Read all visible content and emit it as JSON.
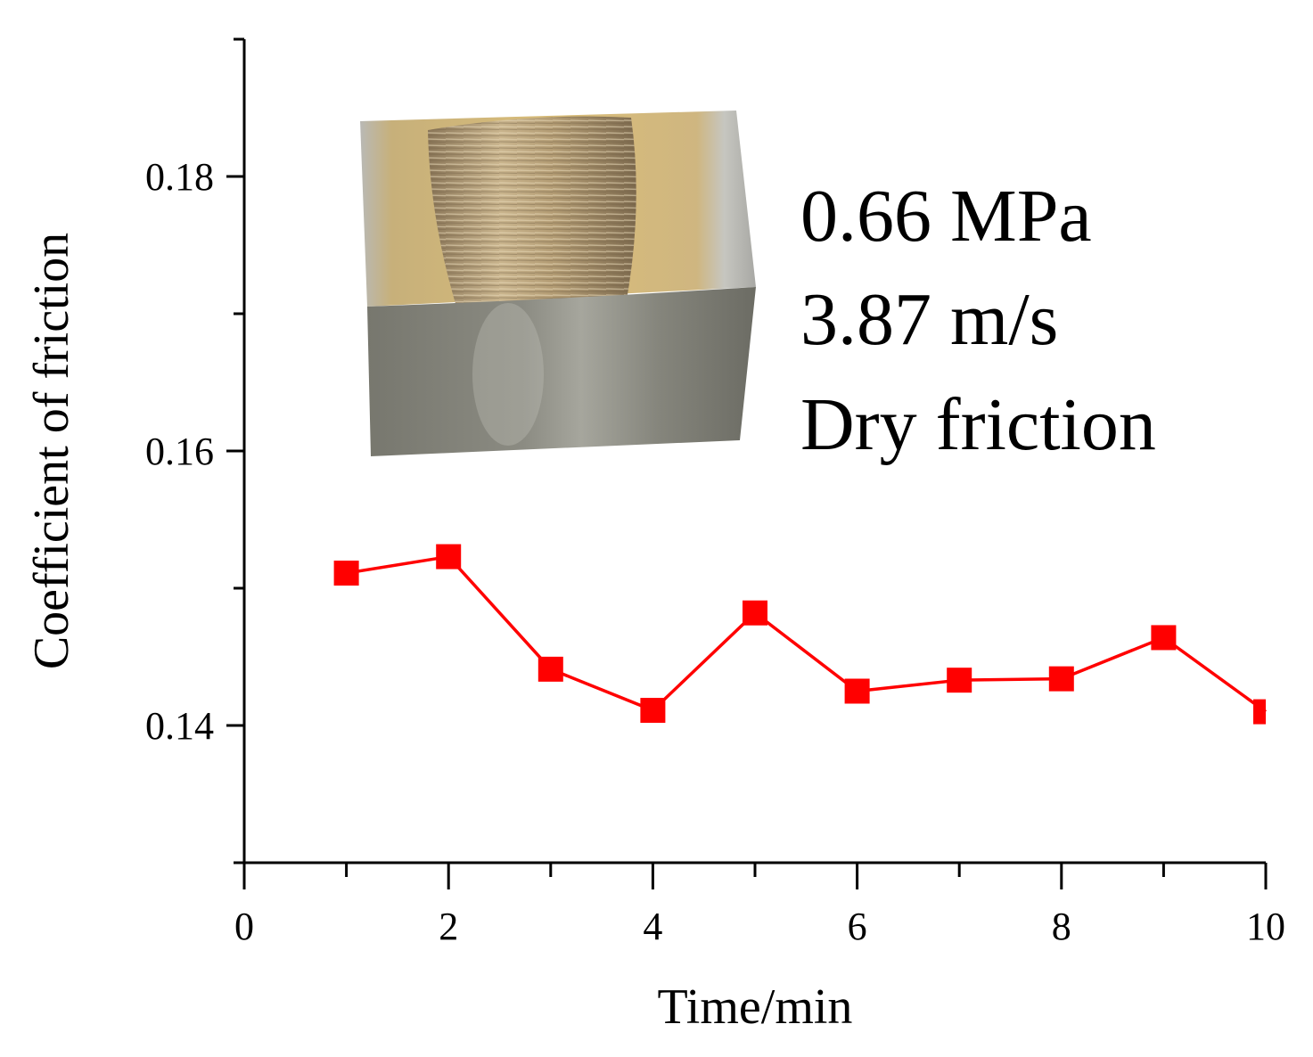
{
  "chart_data": {
    "type": "line",
    "title": "",
    "xlabel": "Time/min",
    "ylabel": "Coefficient of friction",
    "xlim": [
      0,
      10
    ],
    "ylim": [
      0.13,
      0.19
    ],
    "x_ticks": [
      0,
      2,
      4,
      6,
      8,
      10
    ],
    "x_tick_labels": [
      "0",
      "2",
      "4",
      "6",
      "8",
      "10"
    ],
    "y_ticks": [
      0.14,
      0.16,
      0.18
    ],
    "y_tick_labels": [
      "0.14",
      "0.16",
      "0.18"
    ],
    "grid": false,
    "legend": "none",
    "series": [
      {
        "color": "#ff0000",
        "marker": "square",
        "x": [
          1,
          2,
          3,
          4,
          5,
          6,
          7,
          8,
          9,
          10
        ],
        "y": [
          0.1511,
          0.1523,
          0.1441,
          0.1411,
          0.1482,
          0.1425,
          0.1433,
          0.1434,
          0.1464,
          0.141
        ]
      }
    ],
    "annotations": [
      "0.66 MPa",
      "3.87 m/s",
      "Dry friction"
    ],
    "inset_image": "worn-specimen-photo"
  }
}
